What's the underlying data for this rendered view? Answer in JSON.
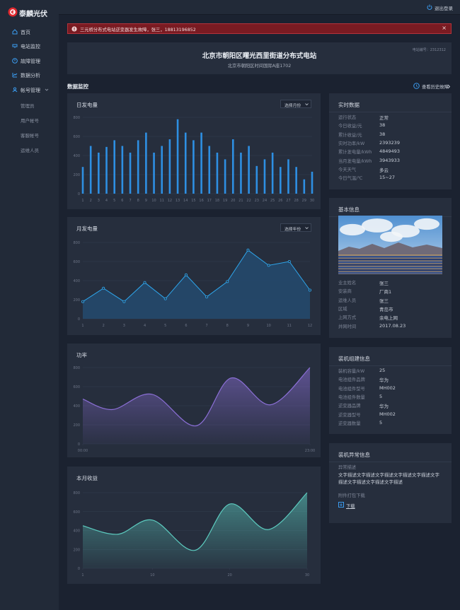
{
  "sidebar": {
    "logo": "泰麟光伏",
    "menu": [
      "首页",
      "电站监控",
      "故障管理",
      "数据分析",
      "帐号管理"
    ],
    "submenu": [
      "管理员",
      "用户帐号",
      "客服帐号",
      "运维人员"
    ]
  },
  "header": {
    "logout": "退出登录"
  },
  "alert": {
    "text": "三元桥分布式电站逆变器发生故障，张三，18813196852",
    "close": "×"
  },
  "station": {
    "code": "电站编号：2312312",
    "title": "北京市朝阳区曙光西里街道分布式电站",
    "address": "北京市朝阳区时间国际A座1702"
  },
  "section": {
    "title": "数据监控",
    "link": "查看历史故障"
  },
  "chart_data": [
    {
      "type": "bar",
      "title": "日发电量",
      "button": "选择月份",
      "color": "#2e8fe2",
      "categories": [
        "1",
        "2",
        "3",
        "4",
        "5",
        "6",
        "7",
        "8",
        "9",
        "10",
        "11",
        "12",
        "13",
        "14",
        "15",
        "16",
        "17",
        "18",
        "19",
        "20",
        "21",
        "22",
        "23",
        "24",
        "25",
        "26",
        "27",
        "28",
        "29",
        "30"
      ],
      "values": [
        280,
        500,
        430,
        490,
        560,
        500,
        430,
        560,
        640,
        430,
        500,
        570,
        780,
        640,
        560,
        640,
        500,
        430,
        360,
        570,
        430,
        500,
        290,
        360,
        430,
        280,
        360,
        280,
        150,
        230
      ],
      "ylim": [
        0,
        800
      ],
      "yticks": [
        0,
        200,
        400,
        600,
        800
      ],
      "grid": true
    },
    {
      "type": "line",
      "title": "月发电量",
      "button": "选择年份",
      "color": "#2ea6ec",
      "area": true,
      "categories": [
        "1",
        "2",
        "3",
        "4",
        "5",
        "6",
        "7",
        "8",
        "9",
        "10",
        "11",
        "12"
      ],
      "values": [
        180,
        320,
        180,
        380,
        210,
        460,
        230,
        390,
        720,
        560,
        600,
        300
      ],
      "ylim": [
        0,
        800
      ],
      "yticks": [
        0,
        200,
        400,
        600,
        800
      ],
      "grid": true
    },
    {
      "type": "curve",
      "title": "功率",
      "color": "#8b6fd6",
      "x": [
        0,
        3,
        7,
        11.5,
        15,
        19,
        23
      ],
      "values": [
        470,
        360,
        520,
        190,
        690,
        410,
        800
      ],
      "xlim": [
        0,
        23
      ],
      "xticks": [
        {
          "value": 0,
          "label": "00:00"
        },
        {
          "value": 23,
          "label": "23:00"
        }
      ],
      "ylim": [
        0,
        800
      ],
      "yticks": [
        0,
        200,
        400,
        600,
        800
      ],
      "grid": true
    },
    {
      "type": "curve",
      "title": "本月收益",
      "color": "#5ccbbf",
      "x": [
        1,
        5.5,
        10,
        15.5,
        20,
        25,
        30
      ],
      "values": [
        450,
        360,
        510,
        190,
        680,
        410,
        800
      ],
      "xlim": [
        1,
        30
      ],
      "xticks": [
        1,
        10,
        20,
        30
      ],
      "ylim": [
        0,
        800
      ],
      "yticks": [
        0,
        200,
        400,
        600,
        800
      ],
      "grid": true
    }
  ],
  "realtime": {
    "title": "实时数据",
    "rows": [
      [
        "运行状态",
        "正常"
      ],
      [
        "今日收益/元",
        "38"
      ],
      [
        "累计收益/元",
        "38"
      ],
      [
        "实时功率/kW",
        "2393239"
      ],
      [
        "累计发电量/kWh",
        "4849493"
      ],
      [
        "当月发电量/kWh",
        "3943933"
      ],
      [
        "今天天气",
        "多云"
      ],
      [
        "今日气温/℃",
        "15~27"
      ]
    ]
  },
  "basic": {
    "title": "基本信息",
    "rows": [
      [
        "业主姓名",
        "张三"
      ],
      [
        "安装商",
        "厂商1"
      ],
      [
        "运维人员",
        "张三"
      ],
      [
        "区域",
        "青岛市"
      ],
      [
        "上网方式",
        "余电上网"
      ],
      [
        "并网时间",
        "2017.08.23"
      ]
    ]
  },
  "install": {
    "title": "装机组建信息",
    "rows": [
      [
        "装机容量/kW",
        "25"
      ],
      [
        "电池组件品牌",
        "华为"
      ],
      [
        "电池组件型号",
        "MH002"
      ],
      [
        "电池组件数量",
        "5"
      ],
      [
        "逆变器品牌",
        "华为"
      ],
      [
        "逆变器型号",
        "MH002"
      ],
      [
        "逆变器数量",
        "5"
      ]
    ]
  },
  "abnormal": {
    "title": "装机异常信息",
    "label": "异常描述",
    "text": "文字描述文字描述文字描述文字描述文字描述文字描述文字描述文字描述文字描述",
    "attachment": "附件打包下载",
    "download": "下载"
  }
}
